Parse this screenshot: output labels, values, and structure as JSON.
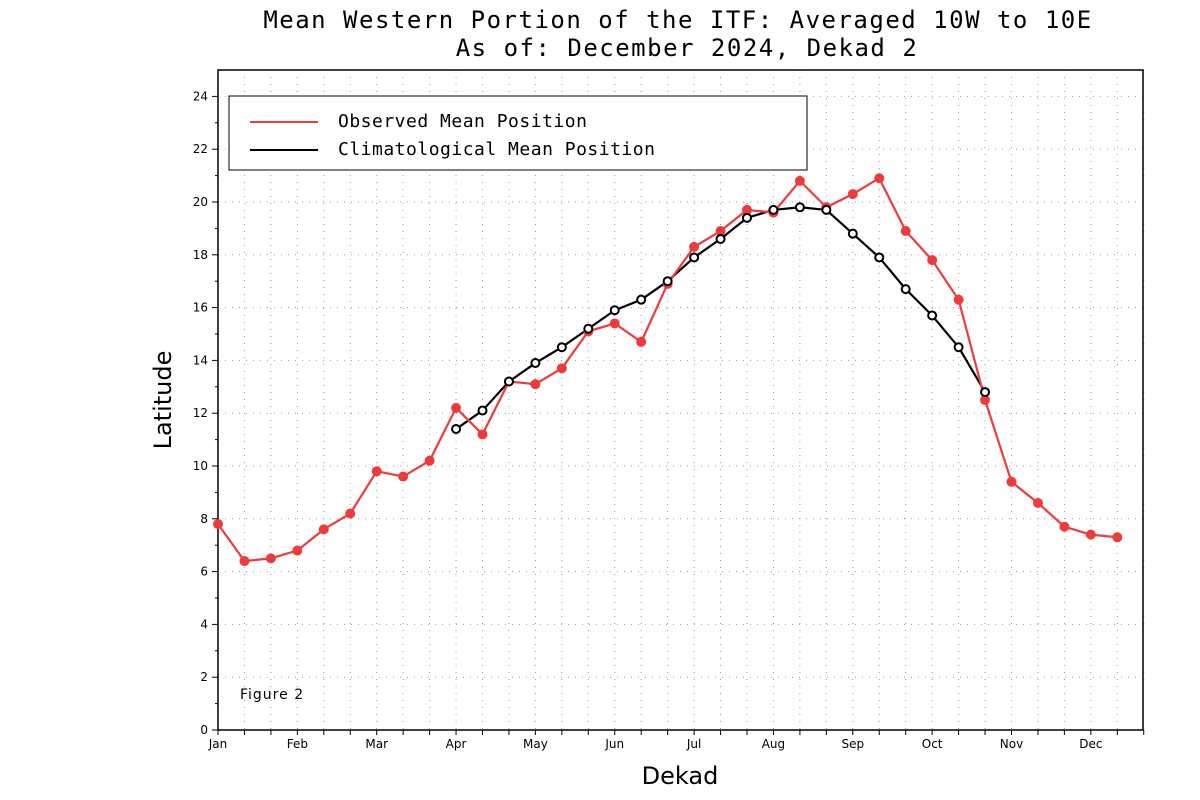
{
  "chart_data": {
    "type": "line",
    "title": "Mean Western Portion of the ITF: Averaged 10W to 10E",
    "subtitle": "As of: December 2024, Dekad 2",
    "xlabel": "Dekad",
    "ylabel": "Latitude",
    "x_tick_labels": [
      "Jan",
      "Feb",
      "Mar",
      "Apr",
      "May",
      "Jun",
      "Jul",
      "Aug",
      "Sep",
      "Oct",
      "Nov",
      "Dec"
    ],
    "y_ticks": [
      0,
      2,
      4,
      6,
      8,
      10,
      12,
      14,
      16,
      18,
      20,
      22,
      24
    ],
    "xlim": [
      1,
      36
    ],
    "ylim": [
      0,
      25
    ],
    "grid": true,
    "legend_position": "top-left",
    "annotation": "Figure 2",
    "series": [
      {
        "name": "Observed Mean Position",
        "color": "#ee3b3b",
        "marker": "filled-circle",
        "x": [
          1,
          2,
          3,
          4,
          5,
          6,
          7,
          8,
          9,
          10,
          11,
          12,
          13,
          14,
          15,
          16,
          17,
          18,
          19,
          20,
          21,
          22,
          23,
          24,
          25,
          26,
          27,
          28,
          29,
          30,
          31,
          32,
          33,
          34,
          35
        ],
        "values": [
          7.8,
          6.4,
          6.5,
          6.8,
          7.6,
          8.2,
          9.8,
          9.6,
          10.2,
          12.2,
          11.2,
          13.2,
          13.1,
          13.7,
          15.1,
          15.4,
          14.7,
          16.9,
          18.3,
          18.9,
          19.7,
          19.6,
          20.8,
          19.8,
          20.3,
          20.9,
          18.9,
          17.8,
          16.3,
          12.5,
          9.4,
          8.6,
          7.7,
          7.4,
          7.3
        ]
      },
      {
        "name": "Climatological Mean Position",
        "color": "#000000",
        "marker": "open-circle",
        "x": [
          10,
          11,
          12,
          13,
          14,
          15,
          16,
          17,
          18,
          19,
          20,
          21,
          22,
          23,
          24,
          25,
          26,
          27,
          28,
          29,
          30
        ],
        "values": [
          11.4,
          12.1,
          13.2,
          13.9,
          14.5,
          15.2,
          15.9,
          16.3,
          17.0,
          17.9,
          18.6,
          19.4,
          19.7,
          19.8,
          19.7,
          18.8,
          17.9,
          16.7,
          15.7,
          14.5,
          12.8
        ]
      }
    ]
  }
}
